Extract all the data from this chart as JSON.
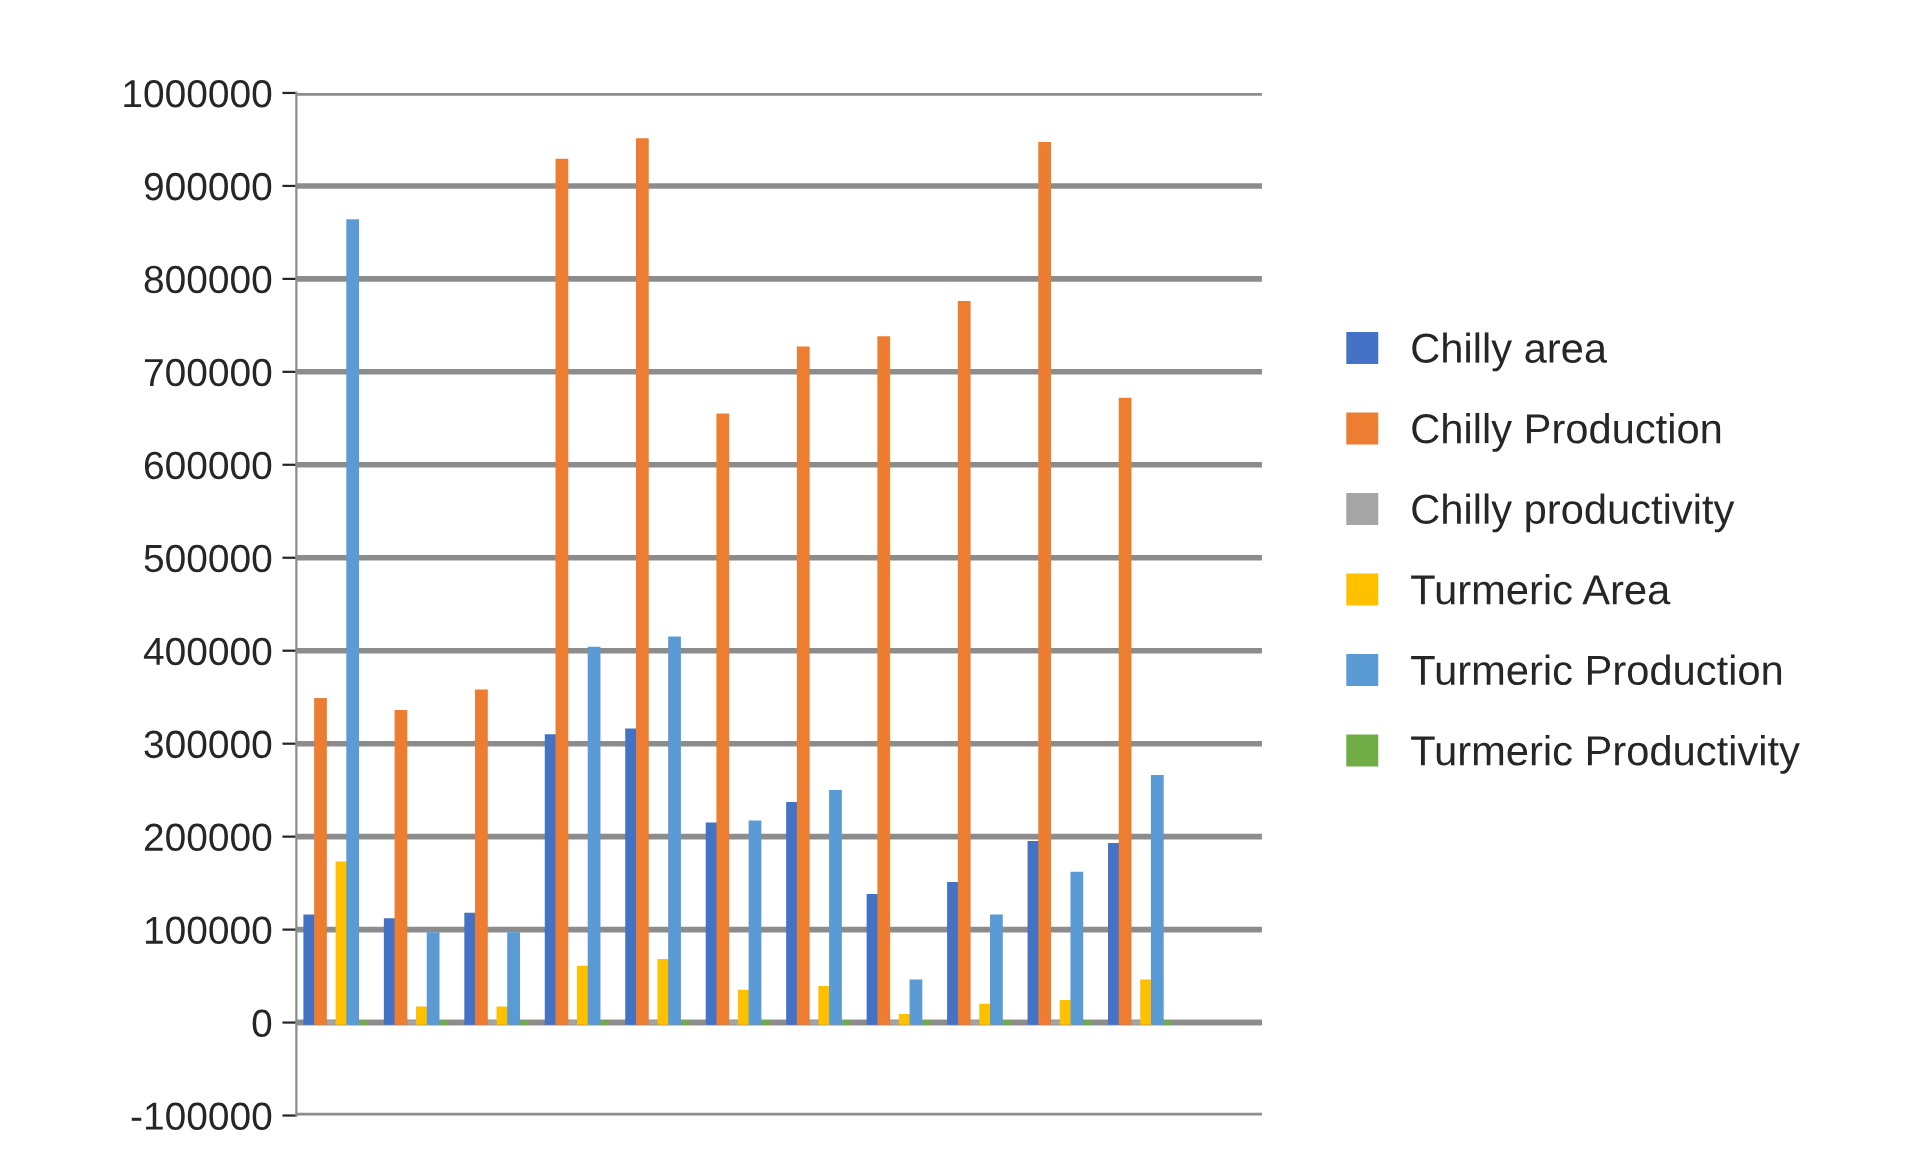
{
  "chart_data": {
    "type": "bar",
    "categories": [
      null,
      null,
      null,
      null,
      null,
      null,
      null,
      null,
      null,
      null,
      null,
      null
    ],
    "series": [
      {
        "name": "Chilly area",
        "color": "#4472c4",
        "values": [
          114000,
          110000,
          116000,
          308000,
          314000,
          213000,
          235000,
          136000,
          149000,
          193000,
          191000,
          null
        ]
      },
      {
        "name": "Chilly Production",
        "color": "#ed7d31",
        "values": [
          347000,
          334000,
          356000,
          927000,
          949000,
          653000,
          725000,
          736000,
          774000,
          945000,
          670000,
          null
        ]
      },
      {
        "name": "Chilly productivity",
        "color": "#a5a5a5",
        "values": [
          0,
          0,
          0,
          0,
          0,
          0,
          0,
          0,
          0,
          0,
          0,
          null
        ]
      },
      {
        "name": "Turmeric Area",
        "color": "#ffc000",
        "values": [
          171000,
          15000,
          15000,
          59000,
          66000,
          33000,
          37000,
          7000,
          18000,
          22000,
          44000,
          null
        ]
      },
      {
        "name": "Turmeric Production",
        "color": "#5b9bd5",
        "values": [
          862000,
          95000,
          95000,
          402000,
          413000,
          215000,
          248000,
          44000,
          114000,
          160000,
          264000,
          null
        ]
      },
      {
        "name": "Turmeric Productivity",
        "color": "#70ad47",
        "values": [
          0,
          0,
          0,
          0,
          0,
          0,
          0,
          0,
          0,
          0,
          0,
          null
        ]
      }
    ],
    "ylim": [
      -100000,
      1000000
    ],
    "yticks": [
      -100000,
      0,
      100000,
      200000,
      300000,
      400000,
      500000,
      600000,
      700000,
      800000,
      900000,
      1000000
    ],
    "grid": "y",
    "legend": "right",
    "tick_labels": "y"
  }
}
